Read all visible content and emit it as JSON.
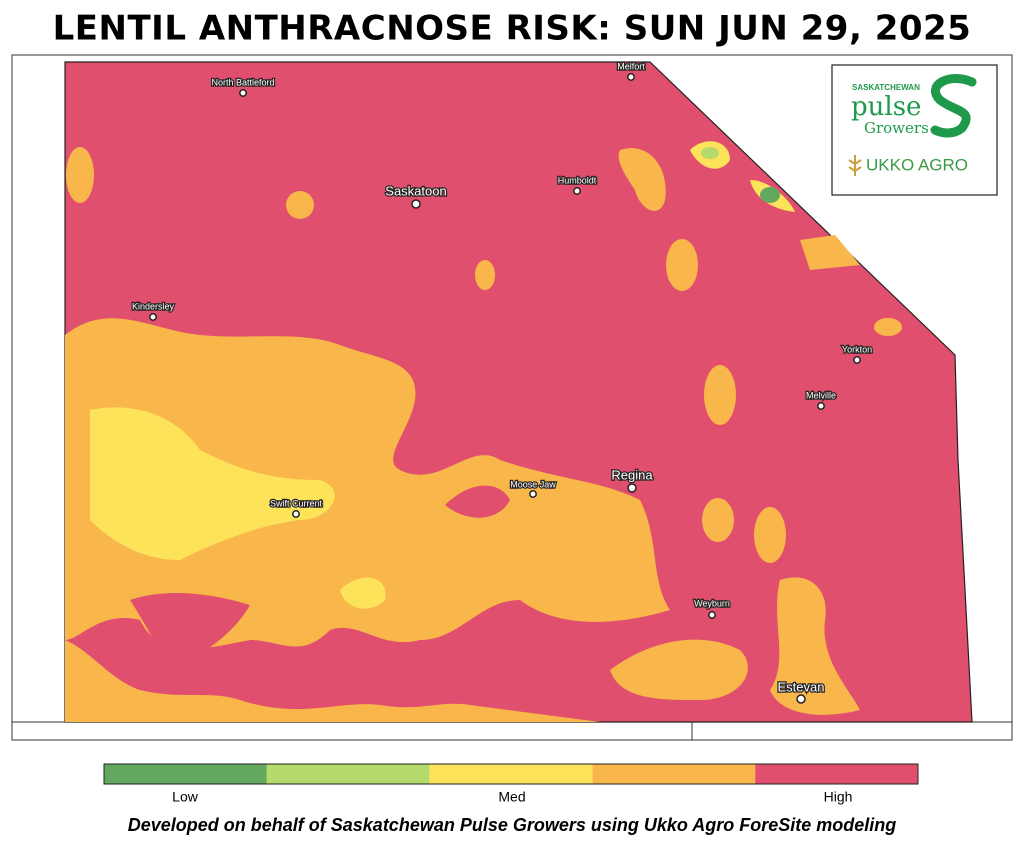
{
  "title": "LENTIL ANTHRACNOSE RISK: SUN JUN 29, 2025",
  "cities": [
    "North Battleford",
    "Melfort",
    "Saskatoon",
    "Humboldt",
    "Kindersley",
    "Yorkton",
    "Melville",
    "Regina",
    "Moose Jaw",
    "Swift Current",
    "Weyburn",
    "Estevan"
  ],
  "logo": {
    "line1": "SASKATCHEWAN",
    "line2": "pulse",
    "line3": "Growers",
    "partner": "UKKO AGRO"
  },
  "legend": {
    "colors": [
      "#62a85f",
      "#b5d96a",
      "#fde35a",
      "#f9b64a",
      "#e0506e"
    ],
    "labels": [
      "Low",
      "Med",
      "High"
    ]
  },
  "footer": "Developed on behalf of Saskatchewan Pulse Growers using Ukko Agro ForeSite modeling"
}
